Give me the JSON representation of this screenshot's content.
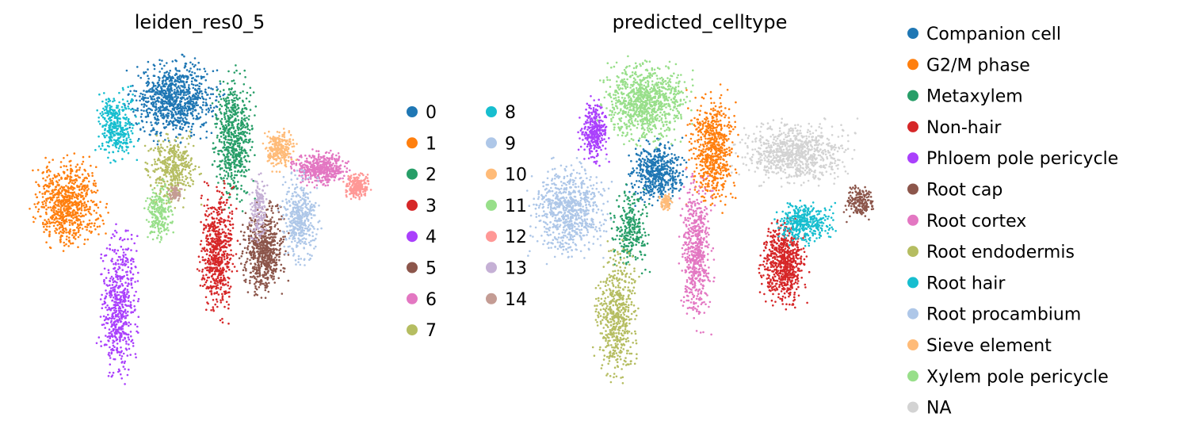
{
  "chart_data": [
    {
      "type": "scatter",
      "title": "leiden_res0_5",
      "xlabel": "",
      "ylabel": "",
      "grid": false,
      "axes_visible": false,
      "legend": {
        "placement": "right",
        "columns": 2,
        "entries": [
          {
            "label": "0",
            "color": "#1f77b4"
          },
          {
            "label": "1",
            "color": "#ff7f0e"
          },
          {
            "label": "2",
            "color": "#279e68"
          },
          {
            "label": "3",
            "color": "#d62728"
          },
          {
            "label": "4",
            "color": "#aa40fc"
          },
          {
            "label": "5",
            "color": "#8c564b"
          },
          {
            "label": "6",
            "color": "#e377c2"
          },
          {
            "label": "7",
            "color": "#b5bd61"
          },
          {
            "label": "8",
            "color": "#17becf"
          },
          {
            "label": "9",
            "color": "#aec7e8"
          },
          {
            "label": "10",
            "color": "#ffbb78"
          },
          {
            "label": "11",
            "color": "#98df8a"
          },
          {
            "label": "12",
            "color": "#ff9896"
          },
          {
            "label": "13",
            "color": "#c5b0d5"
          },
          {
            "label": "14",
            "color": "#c49c94"
          }
        ]
      },
      "clusters": [
        {
          "label": "0",
          "x": 0.35,
          "y": 0.8,
          "sx": 0.1,
          "sy": 0.08,
          "n": 900
        },
        {
          "label": "1",
          "x": -0.2,
          "y": 0.32,
          "sx": 0.08,
          "sy": 0.09,
          "n": 750
        },
        {
          "label": "2",
          "x": 0.65,
          "y": 0.62,
          "sx": 0.045,
          "sy": 0.13,
          "n": 600
        },
        {
          "label": "3",
          "x": 0.57,
          "y": 0.1,
          "sx": 0.04,
          "sy": 0.13,
          "n": 600
        },
        {
          "label": "4",
          "x": 0.06,
          "y": -0.15,
          "sx": 0.045,
          "sy": 0.15,
          "n": 550
        },
        {
          "label": "5",
          "x": 0.81,
          "y": 0.1,
          "sx": 0.05,
          "sy": 0.09,
          "n": 650
        },
        {
          "label": "6",
          "x": 1.1,
          "y": 0.48,
          "sx": 0.06,
          "sy": 0.035,
          "n": 450
        },
        {
          "label": "7",
          "x": 0.34,
          "y": 0.48,
          "sx": 0.06,
          "sy": 0.07,
          "n": 400
        },
        {
          "label": "8",
          "x": 0.05,
          "y": 0.68,
          "sx": 0.045,
          "sy": 0.07,
          "n": 350
        },
        {
          "label": "9",
          "x": 0.99,
          "y": 0.25,
          "sx": 0.045,
          "sy": 0.09,
          "n": 400
        },
        {
          "label": "10",
          "x": 0.89,
          "y": 0.57,
          "sx": 0.035,
          "sy": 0.04,
          "n": 250
        },
        {
          "label": "11",
          "x": 0.27,
          "y": 0.28,
          "sx": 0.03,
          "sy": 0.06,
          "n": 220
        },
        {
          "label": "12",
          "x": 1.29,
          "y": 0.4,
          "sx": 0.03,
          "sy": 0.025,
          "n": 200
        },
        {
          "label": "13",
          "x": 0.78,
          "y": 0.3,
          "sx": 0.02,
          "sy": 0.07,
          "n": 150
        },
        {
          "label": "14",
          "x": 0.35,
          "y": 0.37,
          "sx": 0.015,
          "sy": 0.015,
          "n": 60
        }
      ]
    },
    {
      "type": "scatter",
      "title": "predicted_celltype",
      "xlabel": "",
      "ylabel": "",
      "grid": false,
      "axes_visible": false,
      "legend": {
        "placement": "right",
        "columns": 1,
        "entries": [
          {
            "label": "Companion cell",
            "color": "#1f77b4"
          },
          {
            "label": "G2/M phase",
            "color": "#ff7f0e"
          },
          {
            "label": "Metaxylem",
            "color": "#279e68"
          },
          {
            "label": "Non-hair",
            "color": "#d62728"
          },
          {
            "label": "Phloem pole pericycle",
            "color": "#aa40fc"
          },
          {
            "label": "Root cap",
            "color": "#8c564b"
          },
          {
            "label": "Root cortex",
            "color": "#e377c2"
          },
          {
            "label": "Root endodermis",
            "color": "#b5bd61"
          },
          {
            "label": "Root hair",
            "color": "#17becf"
          },
          {
            "label": "Root procambium",
            "color": "#aec7e8"
          },
          {
            "label": "Sieve element",
            "color": "#ffbb78"
          },
          {
            "label": "Xylem pole pericycle",
            "color": "#98df8a"
          },
          {
            "label": "NA",
            "color": "#d3d3d3"
          }
        ]
      },
      "clusters": [
        {
          "label": "Companion cell",
          "x": 0.33,
          "y": 0.5,
          "sx": 0.06,
          "sy": 0.06,
          "n": 500
        },
        {
          "label": "G2/M phase",
          "x": 0.6,
          "y": 0.6,
          "sx": 0.05,
          "sy": 0.11,
          "n": 650
        },
        {
          "label": "Metaxylem",
          "x": 0.2,
          "y": 0.25,
          "sx": 0.04,
          "sy": 0.08,
          "n": 260
        },
        {
          "label": "Non-hair",
          "x": 0.95,
          "y": 0.1,
          "sx": 0.05,
          "sy": 0.08,
          "n": 650
        },
        {
          "label": "Phloem pole pericycle",
          "x": 0.02,
          "y": 0.68,
          "sx": 0.03,
          "sy": 0.06,
          "n": 300
        },
        {
          "label": "Root cap",
          "x": 1.32,
          "y": 0.37,
          "sx": 0.03,
          "sy": 0.035,
          "n": 180
        },
        {
          "label": "Root cortex",
          "x": 0.52,
          "y": 0.15,
          "sx": 0.035,
          "sy": 0.14,
          "n": 550
        },
        {
          "label": "Root endodermis",
          "x": 0.13,
          "y": -0.12,
          "sx": 0.045,
          "sy": 0.13,
          "n": 550
        },
        {
          "label": "Root hair",
          "x": 1.05,
          "y": 0.28,
          "sx": 0.06,
          "sy": 0.04,
          "n": 380
        },
        {
          "label": "Root procambium",
          "x": -0.1,
          "y": 0.33,
          "sx": 0.08,
          "sy": 0.09,
          "n": 750
        },
        {
          "label": "Sieve element",
          "x": 0.37,
          "y": 0.37,
          "sx": 0.015,
          "sy": 0.015,
          "n": 70
        },
        {
          "label": "Xylem pole pericycle",
          "x": 0.27,
          "y": 0.81,
          "sx": 0.09,
          "sy": 0.08,
          "n": 900
        },
        {
          "label": "NA",
          "x": 1.0,
          "y": 0.58,
          "sx": 0.12,
          "sy": 0.06,
          "n": 800
        }
      ]
    }
  ]
}
